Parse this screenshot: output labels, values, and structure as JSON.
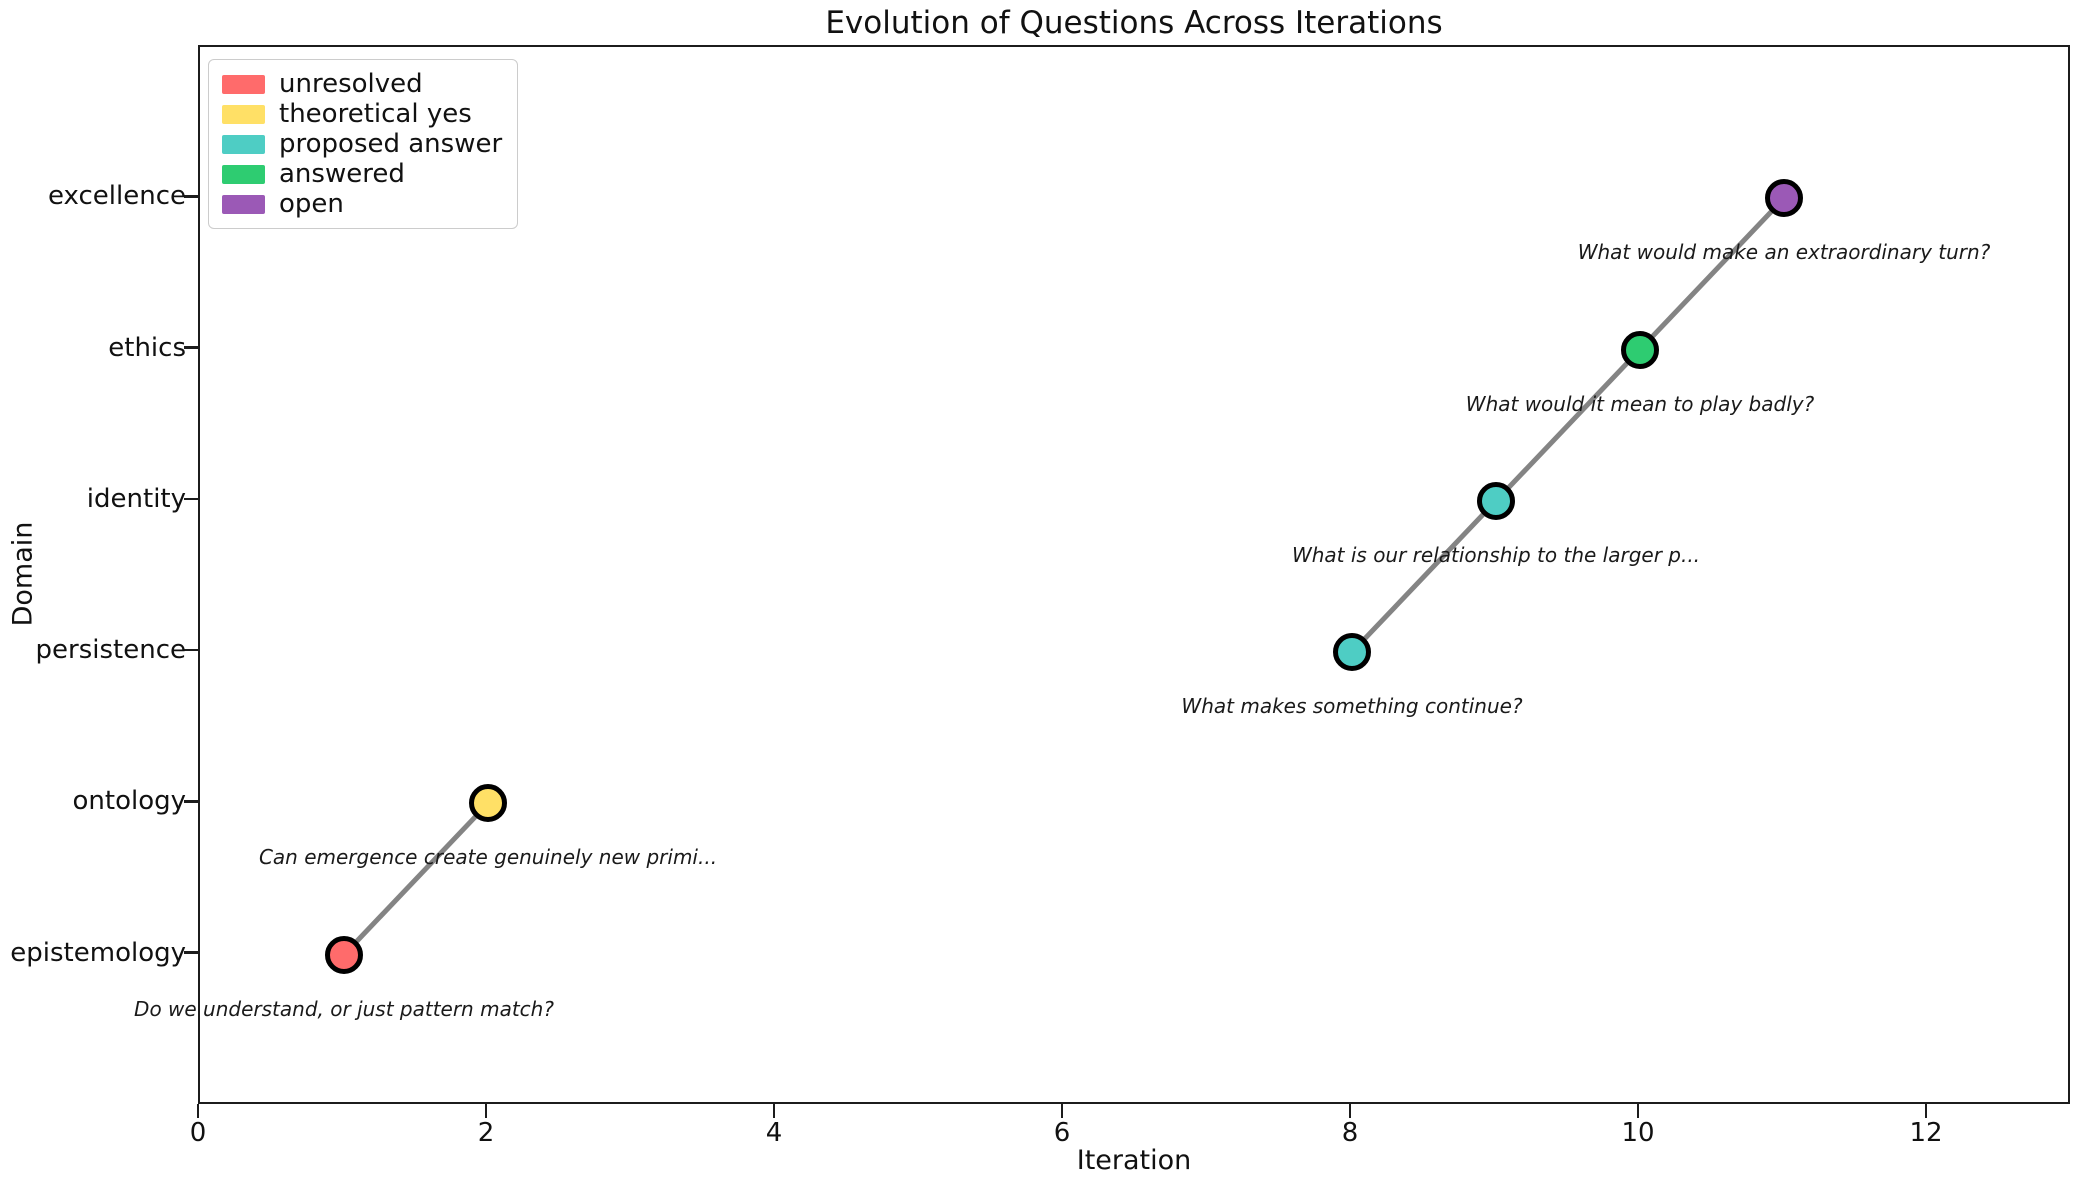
{
  "chart_data": {
    "type": "scatter",
    "title": "Evolution of Questions Across Iterations",
    "xlabel": "Iteration",
    "ylabel": "Domain",
    "xlim": [
      0,
      13
    ],
    "ylim": [
      -1,
      6
    ],
    "x_ticks": [
      0,
      2,
      4,
      6,
      8,
      10,
      12
    ],
    "y_categories": [
      "epistemology",
      "ontology",
      "persistence",
      "identity",
      "ethics",
      "excellence"
    ],
    "grid": false,
    "legend_position": "upper left",
    "legend": [
      {
        "label": "unresolved",
        "color": "#FF6B6B"
      },
      {
        "label": "theoretical yes",
        "color": "#FFE066"
      },
      {
        "label": "proposed answer",
        "color": "#4ECDC4"
      },
      {
        "label": "answered",
        "color": "#2ECC71"
      },
      {
        "label": "open",
        "color": "#9B59B6"
      }
    ],
    "points": [
      {
        "x": 1,
        "domain": "epistemology",
        "status": "unresolved",
        "color": "#FF6B6B",
        "annotation": "Do we understand, or just pattern match?"
      },
      {
        "x": 2,
        "domain": "ontology",
        "status": "theoretical yes",
        "color": "#FFE066",
        "annotation": "Can emergence create genuinely new primi..."
      },
      {
        "x": 8,
        "domain": "persistence",
        "status": "proposed answer",
        "color": "#4ECDC4",
        "annotation": "What makes something continue?"
      },
      {
        "x": 9,
        "domain": "identity",
        "status": "proposed answer",
        "color": "#4ECDC4",
        "annotation": "What is our relationship to the larger p..."
      },
      {
        "x": 10,
        "domain": "ethics",
        "status": "answered",
        "color": "#2ECC71",
        "annotation": "What would it mean to play badly?"
      },
      {
        "x": 11,
        "domain": "excellence",
        "status": "open",
        "color": "#9B59B6",
        "annotation": "What would make an extraordinary turn?"
      }
    ],
    "line_segments": [
      [
        0,
        1
      ],
      [
        2,
        3,
        4,
        5
      ]
    ],
    "line_color": "#848484",
    "marker_edge_color": "#000000",
    "background_color": "#ffffff"
  }
}
